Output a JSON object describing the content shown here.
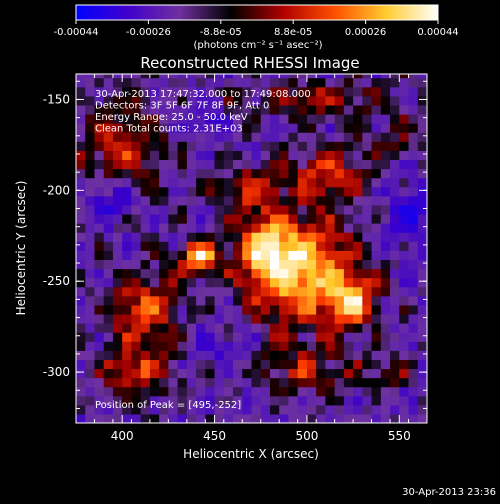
{
  "colorbar": {
    "ticks": [
      "-0.00044",
      "-0.00026",
      "-8.8e-05",
      "8.8e-05",
      "0.00026",
      "0.00044"
    ],
    "unit_label": "(photons cm⁻² s⁻¹ asec⁻²)",
    "stops": [
      "#0000ff",
      "#4000cc",
      "#7030a0",
      "#000000",
      "#b00000",
      "#ff5000",
      "#ffcc30",
      "#ffffff"
    ]
  },
  "chart_data": {
    "type": "heatmap",
    "title": "Reconstructed RHESSI Image",
    "xlabel": "Heliocentric X (arcsec)",
    "ylabel": "Heliocentric Y (arcsec)",
    "xlim": [
      375,
      565
    ],
    "ylim": [
      -328,
      -136
    ],
    "xticks": [
      400,
      450,
      500,
      550
    ],
    "yticks": [
      -150,
      -200,
      -250,
      -300
    ],
    "value_range": [
      -0.00044,
      0.00044
    ],
    "peak": {
      "x": 495,
      "y": -252
    },
    "header_lines": [
      "30-Apr-2013 17:47:32.000 to 17:49:08.000",
      "Detectors: 3F 5F 6F 7F 8F 9F, Att 0",
      "Energy Range: 25.0 - 50.0 keV",
      "Clean     Total counts: 2.31E+03"
    ],
    "peak_label": "Position of Peak = [495,-252]",
    "blobs": [
      {
        "x": 497,
        "y": -245,
        "sx": 28,
        "sy": 30,
        "v": 0.00042
      },
      {
        "x": 478,
        "y": -232,
        "sx": 15,
        "sy": 16,
        "v": 0.00033
      },
      {
        "x": 525,
        "y": -260,
        "sx": 12,
        "sy": 13,
        "v": 0.00035
      },
      {
        "x": 442,
        "y": -237,
        "sx": 10,
        "sy": 9,
        "v": 0.00044
      },
      {
        "x": 470,
        "y": -200,
        "sx": 18,
        "sy": 12,
        "v": 0.00022
      },
      {
        "x": 512,
        "y": -190,
        "sx": 20,
        "sy": 14,
        "v": 0.00024
      },
      {
        "x": 505,
        "y": -150,
        "sx": 40,
        "sy": 10,
        "v": 0.00018
      },
      {
        "x": 400,
        "y": -175,
        "sx": 22,
        "sy": 28,
        "v": 0.0002
      },
      {
        "x": 412,
        "y": -265,
        "sx": 18,
        "sy": 22,
        "v": 0.00026
      },
      {
        "x": 408,
        "y": -300,
        "sx": 20,
        "sy": 14,
        "v": 0.00022
      },
      {
        "x": 500,
        "y": -300,
        "sx": 28,
        "sy": 12,
        "v": 0.00018
      },
      {
        "x": 545,
        "y": -300,
        "sx": 10,
        "sy": 8,
        "v": 0.00016
      },
      {
        "x": 555,
        "y": -215,
        "sx": 12,
        "sy": 16,
        "v": -0.0002
      },
      {
        "x": 395,
        "y": -205,
        "sx": 14,
        "sy": 12,
        "v": -0.00018
      },
      {
        "x": 445,
        "y": -160,
        "sx": 12,
        "sy": 12,
        "v": -0.00012
      },
      {
        "x": 455,
        "y": -285,
        "sx": 16,
        "sy": 10,
        "v": -0.0001
      },
      {
        "x": 548,
        "y": -170,
        "sx": 12,
        "sy": 12,
        "v": 0.0001
      }
    ]
  },
  "timestamp": "30-Apr-2013 23:36"
}
